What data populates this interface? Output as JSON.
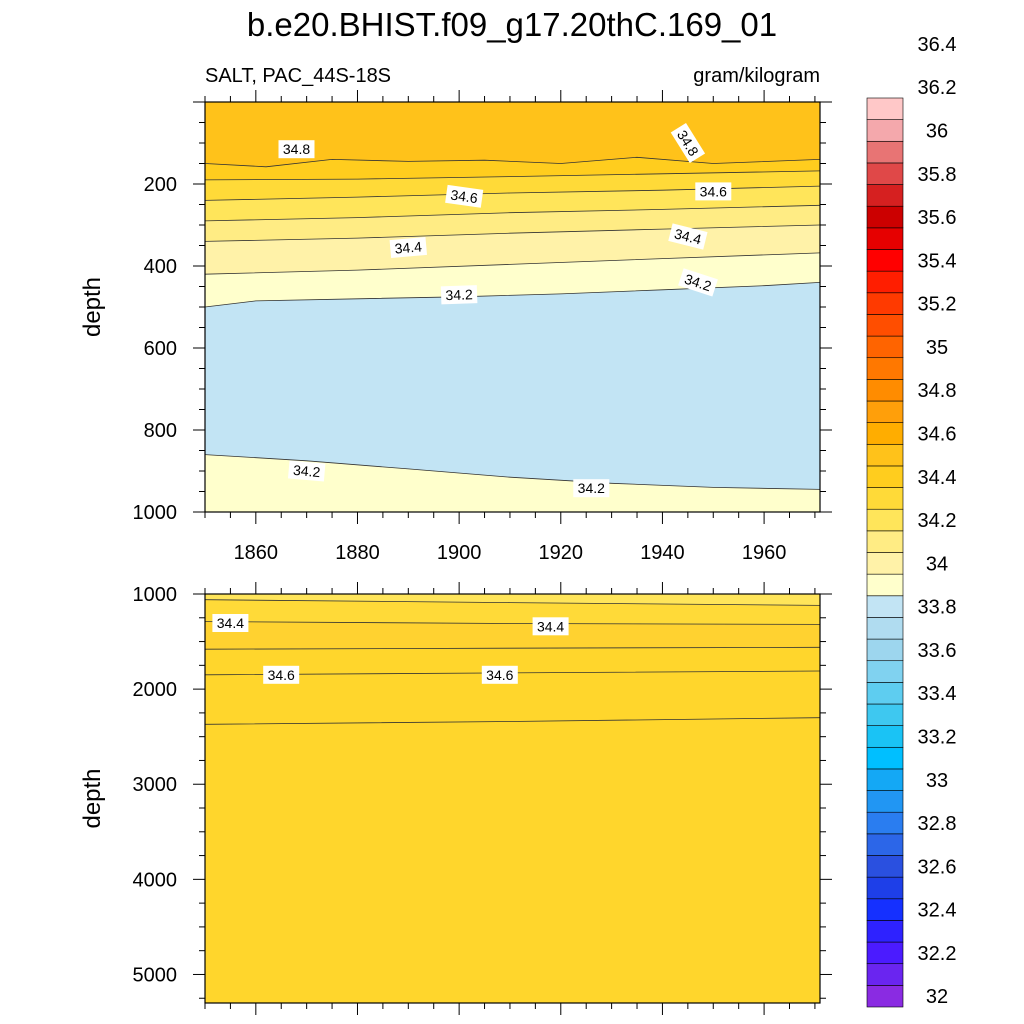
{
  "figure": {
    "title": "b.e20.BHIST.f09_g17.20thC.169_01",
    "left_label": "SALT, PAC_44S-18S",
    "right_label": "gram/kilogram"
  },
  "chart_data": {
    "type": "heatmap",
    "title": "b.e20.BHIST.f09_g17.20thC.169_01",
    "subtitle_left": "SALT, PAC_44S-18S",
    "units": "gram/kilogram",
    "x_range": [
      1850,
      1971
    ],
    "xlabel": "",
    "colorbar": {
      "placement": "right",
      "colors": [
        "#8a2be2",
        "#6a25f0",
        "#4b1bff",
        "#2e22ff",
        "#1530ff",
        "#1e3fe8",
        "#2a50e0",
        "#2c66e8",
        "#2a7df0",
        "#2196f3",
        "#14a8f5",
        "#00bfff",
        "#1ac3f5",
        "#3ec8f0",
        "#5ecdf0",
        "#80d2f0",
        "#9dd6ee",
        "#b0dcf0",
        "#c2e4f4",
        "#ffffcc",
        "#fff2a8",
        "#ffec84",
        "#ffe55a",
        "#ffda38",
        "#ffcd1e",
        "#ffc21a",
        "#ffad00",
        "#ff9f0a",
        "#ff8c00",
        "#ff7800",
        "#ff6400",
        "#ff4e00",
        "#ff3a00",
        "#ff1e00",
        "#ff0000",
        "#e60000",
        "#cc0000",
        "#d62020",
        "#e04848",
        "#e87474",
        "#f4a8ac",
        "#ffc8c8"
      ],
      "tick_labels": [
        "32",
        "32.2",
        "32.4",
        "32.6",
        "32.8",
        "33",
        "33.2",
        "33.4",
        "33.6",
        "33.8",
        "34",
        "34.2",
        "34.4",
        "34.6",
        "34.8",
        "35",
        "35.2",
        "35.4",
        "35.6",
        "35.8",
        "36",
        "36.2",
        "36.4"
      ]
    },
    "panels": [
      {
        "id": "upper",
        "ylabel": "depth",
        "y_range": [
          0,
          1000
        ],
        "y_reversed": true,
        "x_ticks": [
          1860,
          1880,
          1900,
          1920,
          1940,
          1960
        ],
        "x_tick_labels": [
          "1860",
          "1880",
          "1900",
          "1920",
          "1940",
          "1960"
        ],
        "y_ticks": [
          200,
          400,
          600,
          800,
          1000
        ],
        "y_tick_labels": [
          "200",
          "400",
          "600",
          "800",
          "1000"
        ],
        "fill_colors": [
          "#ffc21a",
          "#ffcd1e",
          "#ffda38",
          "#ffe55a",
          "#ffec84",
          "#fff2a8",
          "#ffffcc",
          "#c2e4f4",
          "#ffffcc"
        ],
        "contours": [
          {
            "level": 34.8,
            "x": [
              1850,
              1862,
              1875,
              1890,
              1905,
              1920,
              1935,
              1950,
              1971
            ],
            "depth": [
              150,
              158,
              140,
              145,
              142,
              150,
              135,
              150,
              140
            ]
          },
          {
            "level": 34.7,
            "x": [
              1850,
              1880,
              1910,
              1940,
              1971
            ],
            "depth": [
              190,
              188,
              182,
              175,
              168
            ]
          },
          {
            "level": 34.6,
            "x": [
              1850,
              1880,
              1910,
              1940,
              1971
            ],
            "depth": [
              240,
              232,
              222,
              215,
              205
            ]
          },
          {
            "level": 34.5,
            "x": [
              1850,
              1880,
              1910,
              1940,
              1971
            ],
            "depth": [
              290,
              282,
              270,
              262,
              252
            ]
          },
          {
            "level": 34.4,
            "x": [
              1850,
              1880,
              1910,
              1940,
              1971
            ],
            "depth": [
              340,
              332,
              320,
              310,
              300
            ]
          },
          {
            "level": 34.3,
            "x": [
              1850,
              1880,
              1910,
              1940,
              1971
            ],
            "depth": [
              420,
              410,
              396,
              382,
              368
            ]
          },
          {
            "level": 34.2,
            "x": [
              1850,
              1860,
              1880,
              1900,
              1920,
              1940,
              1960,
              1971
            ],
            "depth": [
              500,
              485,
              480,
              475,
              468,
              458,
              448,
              440
            ]
          },
          {
            "level": 34.2,
            "x": [
              1850,
              1870,
              1890,
              1910,
              1930,
              1950,
              1971
            ],
            "depth": [
              860,
              875,
              895,
              915,
              930,
              940,
              945
            ]
          }
        ],
        "labels": [
          {
            "text": "34.8",
            "x": 1868,
            "depth": 115,
            "angle": 0
          },
          {
            "text": "34.8",
            "x": 1945,
            "depth": 100,
            "angle": 58
          },
          {
            "text": "34.6",
            "x": 1901,
            "depth": 230,
            "angle": 8
          },
          {
            "text": "34.6",
            "x": 1950,
            "depth": 218,
            "angle": 0
          },
          {
            "text": "34.4",
            "x": 1890,
            "depth": 355,
            "angle": -5
          },
          {
            "text": "34.4",
            "x": 1945,
            "depth": 328,
            "angle": 14
          },
          {
            "text": "34.2",
            "x": 1900,
            "depth": 470,
            "angle": -2
          },
          {
            "text": "34.2",
            "x": 1947,
            "depth": 440,
            "angle": 18
          },
          {
            "text": "34.2",
            "x": 1870,
            "depth": 900,
            "angle": 5
          },
          {
            "text": "34.2",
            "x": 1926,
            "depth": 942,
            "angle": 0
          }
        ]
      },
      {
        "id": "lower",
        "ylabel": "depth",
        "y_range": [
          1000,
          5300
        ],
        "y_reversed": true,
        "x_ticks": [
          1860,
          1880,
          1900,
          1920,
          1940,
          1960
        ],
        "x_tick_labels": [],
        "y_ticks": [
          1000,
          2000,
          3000,
          4000,
          5000
        ],
        "y_tick_labels": [
          "1000",
          "2000",
          "3000",
          "4000",
          "5000"
        ],
        "fill_colors": [
          "#ffe55a",
          "#ffda38",
          "#ffd230",
          "#ffd62c"
        ],
        "contours": [
          {
            "level": 34.4,
            "x": [
              1850,
              1910,
              1971
            ],
            "depth": [
              1060,
              1090,
              1120
            ]
          },
          {
            "level": 34.5,
            "x": [
              1850,
              1910,
              1971
            ],
            "depth": [
              1290,
              1310,
              1320
            ]
          },
          {
            "level": 34.6,
            "x": [
              1850,
              1910,
              1971
            ],
            "depth": [
              1580,
              1570,
              1560
            ]
          },
          {
            "level": 34.6,
            "x": [
              1850,
              1910,
              1971
            ],
            "depth": [
              1850,
              1830,
              1810
            ]
          },
          {
            "level": 34.7,
            "x": [
              1850,
              1910,
              1971
            ],
            "depth": [
              2370,
              2340,
              2300
            ]
          }
        ],
        "labels": [
          {
            "text": "34.4",
            "x": 1855,
            "depth": 1305,
            "angle": 0
          },
          {
            "text": "34.4",
            "x": 1918,
            "depth": 1340,
            "angle": 0
          },
          {
            "text": "34.6",
            "x": 1865,
            "depth": 1850,
            "angle": 0
          },
          {
            "text": "34.6",
            "x": 1908,
            "depth": 1850,
            "angle": 0
          }
        ]
      }
    ]
  }
}
